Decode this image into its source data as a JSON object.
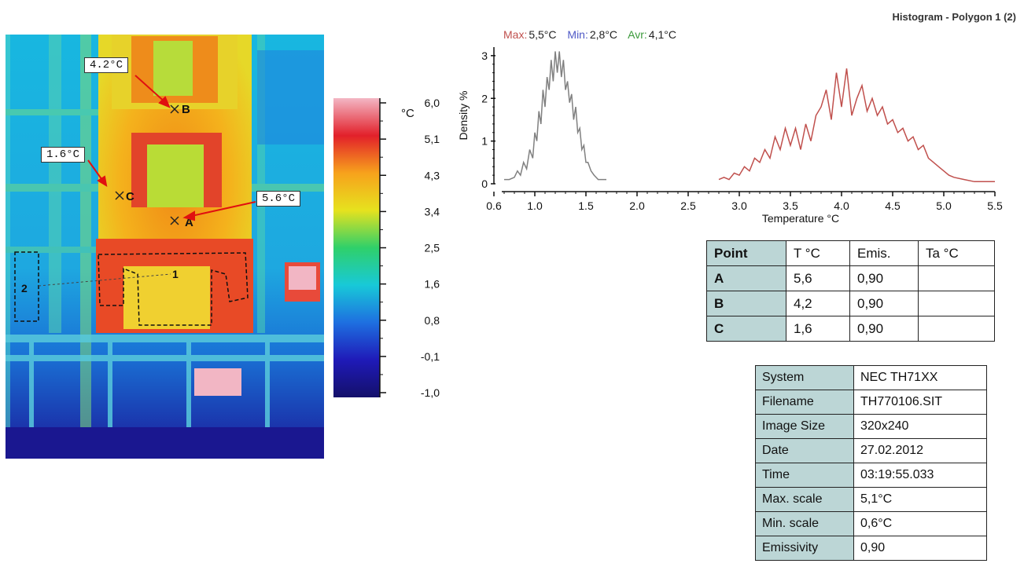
{
  "thermal_image": {
    "callouts": [
      {
        "text": "4.2°C",
        "point": "B"
      },
      {
        "text": "1.6°C",
        "point": "C"
      },
      {
        "text": "5.6°C",
        "point": "A"
      }
    ],
    "markers": [
      "A",
      "B",
      "C"
    ],
    "polygons": [
      "1",
      "2"
    ]
  },
  "color_scale": {
    "unit": "°C",
    "ticks": [
      "6,0",
      "5,1",
      "4,3",
      "3,4",
      "2,5",
      "1,6",
      "0,8",
      "-0,1",
      "-1,0"
    ],
    "colors": [
      "#f3b6c4",
      "#e2202a",
      "#f7a21c",
      "#e6e21e",
      "#2fd06a",
      "#18c9d8",
      "#1e6fe0",
      "#1f1ab8",
      "#14106a"
    ]
  },
  "histogram": {
    "title": "Histogram - Polygon 1 (2)",
    "stats": [
      {
        "label": "Max:",
        "value": "5,5°C",
        "color": "#c0504d"
      },
      {
        "label": "Min:",
        "value": "2,8°C",
        "color": "#4f59c6"
      },
      {
        "label": "Avr:",
        "value": "4,1°C",
        "color": "#3b9a3b"
      }
    ],
    "stats_value_color": "#222222"
  },
  "chart_data": {
    "type": "line",
    "title": "Histogram - Polygon 1 (2)",
    "xlabel": "Temperature °C",
    "ylabel": "Density %",
    "xlim": [
      0.6,
      5.5
    ],
    "ylim": [
      0,
      3.2
    ],
    "x_ticks": [
      "0.6",
      "1.0",
      "1.5",
      "2.0",
      "2.5",
      "3.0",
      "3.5",
      "4.0",
      "4.5",
      "5.0",
      "5.5"
    ],
    "y_ticks": [
      "0",
      "1",
      "2",
      "3"
    ],
    "series": [
      {
        "color": "#808080",
        "x": [
          0.7,
          0.75,
          0.8,
          0.83,
          0.86,
          0.89,
          0.92,
          0.95,
          0.98,
          1.0,
          1.02,
          1.04,
          1.06,
          1.08,
          1.1,
          1.12,
          1.14,
          1.16,
          1.18,
          1.2,
          1.22,
          1.24,
          1.26,
          1.28,
          1.3,
          1.32,
          1.34,
          1.36,
          1.38,
          1.4,
          1.42,
          1.44,
          1.46,
          1.48,
          1.5,
          1.52,
          1.55,
          1.58,
          1.62,
          1.7
        ],
        "y": [
          0.1,
          0.1,
          0.15,
          0.3,
          0.2,
          0.5,
          0.35,
          0.8,
          0.6,
          1.2,
          1.0,
          1.7,
          1.4,
          2.2,
          1.8,
          2.5,
          2.2,
          2.9,
          2.4,
          3.1,
          2.6,
          3.1,
          2.5,
          2.9,
          2.2,
          2.4,
          1.9,
          2.1,
          1.5,
          1.8,
          1.2,
          1.3,
          0.8,
          0.9,
          0.5,
          0.5,
          0.3,
          0.2,
          0.1,
          0.1
        ]
      },
      {
        "color": "#c0504d",
        "x": [
          2.8,
          2.85,
          2.9,
          2.95,
          3.0,
          3.05,
          3.1,
          3.15,
          3.2,
          3.25,
          3.3,
          3.35,
          3.4,
          3.45,
          3.5,
          3.55,
          3.6,
          3.65,
          3.7,
          3.75,
          3.8,
          3.85,
          3.9,
          3.95,
          4.0,
          4.05,
          4.1,
          4.15,
          4.2,
          4.25,
          4.3,
          4.35,
          4.4,
          4.45,
          4.5,
          4.55,
          4.6,
          4.65,
          4.7,
          4.75,
          4.8,
          4.85,
          4.9,
          4.95,
          5.0,
          5.05,
          5.1,
          5.2,
          5.3,
          5.4,
          5.5
        ],
        "y": [
          0.1,
          0.15,
          0.1,
          0.25,
          0.2,
          0.4,
          0.3,
          0.6,
          0.5,
          0.8,
          0.6,
          1.1,
          0.8,
          1.3,
          0.9,
          1.3,
          0.8,
          1.4,
          1.0,
          1.6,
          1.8,
          2.2,
          1.5,
          2.6,
          1.8,
          2.7,
          1.6,
          2.0,
          2.3,
          1.7,
          2.0,
          1.6,
          1.8,
          1.4,
          1.5,
          1.2,
          1.3,
          1.0,
          1.1,
          0.8,
          0.9,
          0.6,
          0.5,
          0.4,
          0.3,
          0.2,
          0.15,
          0.1,
          0.05,
          0.05,
          0.05
        ]
      }
    ]
  },
  "point_table": {
    "headers": [
      "Point",
      "T °C",
      "Emis.",
      "Ta °C"
    ],
    "rows": [
      [
        "A",
        "5,6",
        "0,90",
        ""
      ],
      [
        "B",
        "4,2",
        "0,90",
        ""
      ],
      [
        "C",
        "1,6",
        "0,90",
        ""
      ]
    ]
  },
  "info_table": [
    [
      "System",
      "NEC TH71XX"
    ],
    [
      "Filename",
      "TH770106.SIT"
    ],
    [
      "Image Size",
      "320x240"
    ],
    [
      "Date",
      "27.02.2012"
    ],
    [
      "Time",
      "03:19:55.033"
    ],
    [
      "Max. scale",
      "5,1°C"
    ],
    [
      "Min. scale",
      "0,6°C"
    ],
    [
      "Emissivity",
      "0,90"
    ]
  ]
}
